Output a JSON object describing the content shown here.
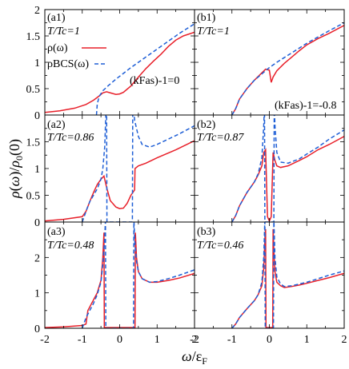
{
  "figure": {
    "ylabel": "ρ(ω)/ρ0(0)",
    "xlabel": "ω/εF"
  },
  "x_ticks": [
    "-2",
    "-1",
    "0",
    "1",
    "2"
  ],
  "chart_data": [
    {
      "type": "line",
      "id": "a1",
      "panel_label": "(a1)",
      "temp_label": "T/Tc=1",
      "legend": [
        {
          "name": "ρ(ω)",
          "style": "solid"
        },
        {
          "name": "ρBCS(ω)",
          "style": "dashed"
        }
      ],
      "interaction_label": "(kFas)-1=0",
      "ylim": [
        0,
        2
      ],
      "y_ticks": [
        "0",
        "0.5",
        "1",
        "1.5",
        "2"
      ],
      "xlim": [
        -2,
        2
      ],
      "series": [
        {
          "name": "ρ(ω)",
          "color": "#e8202a",
          "style": "solid",
          "x": [
            -2,
            -1.6,
            -1.2,
            -0.9,
            -0.7,
            -0.55,
            -0.45,
            -0.35,
            -0.25,
            -0.1,
            0,
            0.1,
            0.3,
            0.5,
            0.7,
            0.9,
            1.1,
            1.3,
            1.5,
            1.7,
            2
          ],
          "y": [
            0.05,
            0.08,
            0.13,
            0.2,
            0.28,
            0.36,
            0.42,
            0.44,
            0.42,
            0.39,
            0.4,
            0.43,
            0.55,
            0.72,
            0.88,
            1.02,
            1.15,
            1.3,
            1.42,
            1.5,
            1.57
          ]
        },
        {
          "name": "ρBCS(ω)",
          "color": "#1f5fd6",
          "style": "dashed",
          "x": [
            -0.62,
            -0.6,
            -0.55,
            -0.45,
            -0.3,
            -0.1,
            0.1,
            0.3,
            0.5,
            0.7,
            1.0,
            1.3,
            1.6,
            2
          ],
          "y": [
            0,
            0.2,
            0.35,
            0.46,
            0.56,
            0.68,
            0.79,
            0.9,
            1.0,
            1.1,
            1.25,
            1.4,
            1.55,
            1.73
          ]
        }
      ]
    },
    {
      "type": "line",
      "id": "b1",
      "panel_label": "(b1)",
      "temp_label": "T/Tc=1",
      "interaction_label": "(kFas)-1=-0.8",
      "ylim": [
        0,
        2
      ],
      "xlim": [
        -2,
        2
      ],
      "series": [
        {
          "name": "ρ(ω)",
          "color": "#e8202a",
          "style": "solid",
          "x": [
            -1.0,
            -0.9,
            -0.8,
            -0.6,
            -0.4,
            -0.2,
            -0.1,
            0,
            0.05,
            0.1,
            0.2,
            0.4,
            0.6,
            0.8,
            1.0,
            1.3,
            1.6,
            2
          ],
          "y": [
            0,
            0.12,
            0.3,
            0.5,
            0.66,
            0.8,
            0.87,
            0.85,
            0.62,
            0.72,
            0.84,
            0.98,
            1.1,
            1.22,
            1.33,
            1.45,
            1.55,
            1.7
          ]
        },
        {
          "name": "ρBCS(ω)",
          "color": "#1f5fd6",
          "style": "dashed",
          "x": [
            -1.0,
            -0.9,
            -0.8,
            -0.6,
            -0.4,
            -0.2,
            0,
            0.2,
            0.4,
            0.6,
            0.8,
            1.0,
            1.3,
            1.6,
            2
          ],
          "y": [
            0,
            0.12,
            0.3,
            0.5,
            0.66,
            0.78,
            0.9,
            1.0,
            1.09,
            1.18,
            1.27,
            1.36,
            1.48,
            1.6,
            1.75
          ]
        }
      ]
    },
    {
      "type": "line",
      "id": "a2",
      "panel_label": "(a2)",
      "temp_label": "T/Tc=0.86",
      "ylim": [
        0,
        2
      ],
      "y_ticks": [
        "0",
        "0.5",
        "1",
        "1.5"
      ],
      "xlim": [
        -2,
        2
      ],
      "series": [
        {
          "name": "ρ(ω)",
          "color": "#e8202a",
          "style": "solid",
          "x": [
            -2,
            -1.5,
            -1.0,
            -0.9,
            -0.8,
            -0.7,
            -0.6,
            -0.5,
            -0.42,
            -0.35,
            -0.25,
            -0.1,
            0,
            0.1,
            0.2,
            0.3,
            0.4,
            0.41,
            0.5,
            0.7,
            1.0,
            1.5,
            2
          ],
          "y": [
            0.02,
            0.05,
            0.1,
            0.2,
            0.38,
            0.55,
            0.7,
            0.8,
            0.86,
            0.65,
            0.4,
            0.28,
            0.25,
            0.26,
            0.35,
            0.5,
            0.6,
            1.0,
            1.05,
            1.1,
            1.2,
            1.35,
            1.52
          ]
        },
        {
          "name": "ρBCS(ω)",
          "color": "#1f5fd6",
          "style": "dashed",
          "x": [
            -1.0,
            -0.9,
            -0.8,
            -0.7,
            -0.6,
            -0.5,
            -0.45,
            -0.4,
            -0.36,
            -0.35,
            -0.34,
            0.34,
            0.35,
            0.36,
            0.4,
            0.5,
            0.6,
            0.8,
            1.0,
            1.3,
            1.6,
            2
          ],
          "y": [
            0,
            0.2,
            0.38,
            0.5,
            0.62,
            0.8,
            1.0,
            1.4,
            2.2,
            2.2,
            0,
            0,
            2.2,
            2.2,
            1.9,
            1.6,
            1.45,
            1.4,
            1.45,
            1.55,
            1.65,
            1.8
          ]
        }
      ]
    },
    {
      "type": "line",
      "id": "b2",
      "panel_label": "(b2)",
      "temp_label": "T/Tc=0.87",
      "ylim": [
        0,
        2
      ],
      "xlim": [
        -2,
        2
      ],
      "series": [
        {
          "name": "ρ(ω)",
          "color": "#e8202a",
          "style": "solid",
          "x": [
            -1.0,
            -0.9,
            -0.8,
            -0.6,
            -0.4,
            -0.3,
            -0.2,
            -0.15,
            -0.1,
            -0.05,
            0,
            0.05,
            0.1,
            0.15,
            0.2,
            0.3,
            0.5,
            0.8,
            1.0,
            1.3,
            1.6,
            2
          ],
          "y": [
            0,
            0.12,
            0.3,
            0.55,
            0.75,
            0.88,
            1.05,
            1.3,
            1.35,
            0.1,
            0.02,
            0.1,
            1.3,
            1.15,
            1.05,
            1.02,
            1.05,
            1.15,
            1.22,
            1.35,
            1.45,
            1.6
          ]
        },
        {
          "name": "ρBCS(ω)",
          "color": "#1f5fd6",
          "style": "dashed",
          "x": [
            -1.0,
            -0.9,
            -0.8,
            -0.6,
            -0.4,
            -0.3,
            -0.2,
            -0.15,
            -0.13,
            -0.12,
            0.12,
            0.13,
            0.15,
            0.2,
            0.3,
            0.5,
            0.8,
            1.0,
            1.3,
            1.6,
            2
          ],
          "y": [
            0,
            0.12,
            0.3,
            0.55,
            0.75,
            0.9,
            1.2,
            1.8,
            2.2,
            0,
            0,
            2.2,
            1.8,
            1.3,
            1.12,
            1.1,
            1.18,
            1.27,
            1.4,
            1.55,
            1.72
          ]
        }
      ]
    },
    {
      "type": "line",
      "id": "a3",
      "panel_label": "(a3)",
      "temp_label": "T/Tc=0.48",
      "ylim": [
        0,
        3
      ],
      "y_ticks": [
        "0",
        "1",
        "2"
      ],
      "xlim": [
        -2,
        2
      ],
      "series": [
        {
          "name": "ρ(ω)",
          "color": "#e8202a",
          "style": "solid",
          "x": [
            -2,
            -1.5,
            -1.0,
            -0.9,
            -0.85,
            -0.8,
            -0.7,
            -0.6,
            -0.5,
            -0.45,
            -0.42,
            -0.41,
            0.41,
            0.42,
            0.45,
            0.5,
            0.6,
            0.8,
            1.0,
            1.3,
            1.6,
            2
          ],
          "y": [
            0.02,
            0.04,
            0.08,
            0.12,
            0.5,
            0.6,
            0.8,
            1.0,
            1.35,
            2.0,
            2.7,
            0.02,
            0.02,
            2.7,
            2.0,
            1.6,
            1.4,
            1.3,
            1.3,
            1.35,
            1.42,
            1.55
          ]
        },
        {
          "name": "ρBCS(ω)",
          "color": "#1f5fd6",
          "style": "dashed",
          "x": [
            -1.0,
            -0.9,
            -0.8,
            -0.7,
            -0.6,
            -0.5,
            -0.45,
            -0.4,
            -0.38,
            -0.37,
            0.37,
            0.38,
            0.4,
            0.45,
            0.5,
            0.6,
            0.8,
            1.0,
            1.3,
            1.6,
            2
          ],
          "y": [
            0,
            0.3,
            0.5,
            0.7,
            0.95,
            1.3,
            1.8,
            2.5,
            3.1,
            0,
            0,
            3.1,
            2.5,
            1.9,
            1.6,
            1.4,
            1.3,
            1.32,
            1.4,
            1.5,
            1.65
          ]
        }
      ]
    },
    {
      "type": "line",
      "id": "b3",
      "panel_label": "(b3)",
      "temp_label": "T/Tc=0.46",
      "ylim": [
        0,
        3
      ],
      "xlim": [
        -2,
        2
      ],
      "series": [
        {
          "name": "ρ(ω)",
          "color": "#e8202a",
          "style": "solid",
          "x": [
            -1.0,
            -0.9,
            -0.8,
            -0.6,
            -0.4,
            -0.3,
            -0.2,
            -0.15,
            -0.12,
            -0.1,
            -0.09,
            0.09,
            0.1,
            0.12,
            0.15,
            0.2,
            0.3,
            0.4,
            0.6,
            0.8,
            1.0,
            1.3,
            1.6,
            2
          ],
          "y": [
            0,
            0.12,
            0.3,
            0.55,
            0.78,
            0.95,
            1.2,
            1.7,
            2.5,
            2.8,
            0.02,
            0.02,
            2.8,
            2.2,
            1.6,
            1.3,
            1.2,
            1.15,
            1.18,
            1.22,
            1.27,
            1.35,
            1.43,
            1.55
          ]
        },
        {
          "name": "ρBCS(ω)",
          "color": "#1f5fd6",
          "style": "dashed",
          "x": [
            -1.0,
            -0.9,
            -0.8,
            -0.6,
            -0.4,
            -0.3,
            -0.2,
            -0.15,
            -0.12,
            -0.11,
            0.11,
            0.12,
            0.15,
            0.2,
            0.3,
            0.4,
            0.6,
            0.8,
            1.0,
            1.3,
            1.6,
            2
          ],
          "y": [
            0,
            0.12,
            0.3,
            0.55,
            0.78,
            0.95,
            1.3,
            2.0,
            3.1,
            0,
            0,
            3.1,
            2.0,
            1.45,
            1.25,
            1.18,
            1.2,
            1.25,
            1.3,
            1.4,
            1.5,
            1.62
          ]
        }
      ]
    }
  ]
}
